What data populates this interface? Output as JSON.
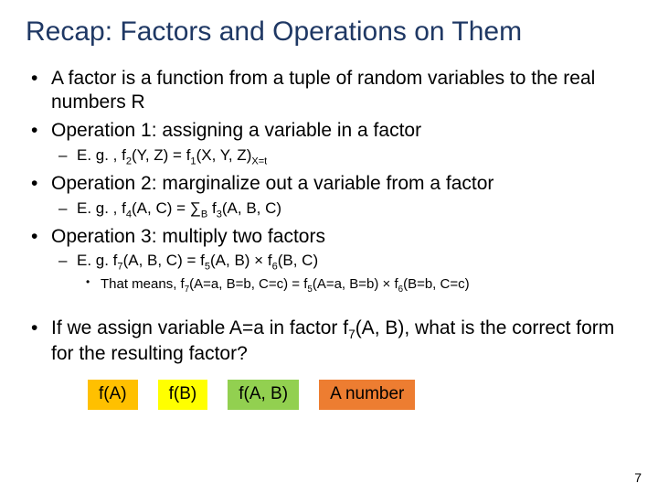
{
  "title": "Recap: Factors and Operations on Them",
  "title_color": "#1f3864",
  "bullets": {
    "b1": "A factor is a function from a tuple of random variables to the real numbers R",
    "b2": "Operation 1: assigning a variable in a factor",
    "b2_eg_prefix": "E. g. , f",
    "b2_eg_sub1": "2",
    "b2_eg_mid1": "(Y, Z) = f",
    "b2_eg_sub2": "1",
    "b2_eg_mid2": "(X, Y, Z)",
    "b2_eg_sub3": "X=t",
    "b3": "Operation 2: marginalize out a variable from a factor",
    "b3_eg_prefix": "E. g. , f",
    "b3_eg_sub1": "4",
    "b3_eg_mid1": "(A, C) = ∑",
    "b3_eg_subB": "B",
    "b3_eg_mid2": " f",
    "b3_eg_sub3": "3",
    "b3_eg_tail": "(A, B, C)",
    "b4": "Operation 3: multiply two factors",
    "b4_eg_prefix": "E. g. f",
    "b4_eg_sub1": "7",
    "b4_eg_mid1": "(A, B, C) = f",
    "b4_eg_sub2": "5",
    "b4_eg_mid2": "(A, B)  ×  f",
    "b4_eg_sub3": "6",
    "b4_eg_tail": "(B, C)",
    "b4_sub_prefix": "That means, f",
    "b4_sub_s1": "7",
    "b4_sub_m1": "(A=a, B=b, C=c) = f",
    "b4_sub_s2": "5",
    "b4_sub_m2": "(A=a, B=b)  ×  f",
    "b4_sub_s3": "6",
    "b4_sub_tail": "(B=b, C=c)"
  },
  "question": {
    "prefix": "If we assign variable A=a in factor f",
    "sub": "7",
    "mid": "(A, B), what is the correct form for the resulting factor?"
  },
  "answers": {
    "a1": "f(A)",
    "a2": "f(B)",
    "a3": "f(A, B)",
    "a4": "A number"
  },
  "answer_colors": {
    "a1": "#ffc000",
    "a2": "#ffff00",
    "a3": "#92d050",
    "a4": "#ed7d31"
  },
  "page_number": "7"
}
